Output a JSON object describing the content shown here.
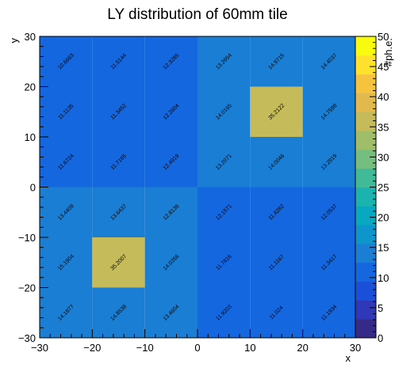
{
  "chart_data": {
    "type": "heatmap",
    "title": "LY distribution of 60mm tile",
    "xlabel": "x",
    "ylabel": "y",
    "zlabel": "#ph.e.",
    "xlim": [
      -30,
      30
    ],
    "ylim": [
      -30,
      30
    ],
    "zlim": [
      0,
      50
    ],
    "x_edges": [
      -30,
      -20,
      -10,
      0,
      10,
      20,
      30
    ],
    "y_edges": [
      -30,
      -20,
      -10,
      0,
      10,
      20,
      30
    ],
    "x_ticks": [
      -30,
      -20,
      -10,
      0,
      10,
      20,
      30
    ],
    "y_ticks": [
      -30,
      -20,
      -10,
      0,
      10,
      20,
      30
    ],
    "z_ticks": [
      0,
      5,
      10,
      15,
      20,
      25,
      30,
      35,
      40,
      45,
      50
    ],
    "rows_top_to_bottom": [
      [
        10.6663,
        11.5144,
        12.3285,
        13.2654,
        14.9715,
        14.4037
      ],
      [
        11.1135,
        11.3452,
        12.2604,
        14.0165,
        35.2122,
        14.7598
      ],
      [
        11.6724,
        11.7165,
        12.4919,
        13.2071,
        14.0046,
        13.2919
      ],
      [
        13.4409,
        13.6437,
        12.8136,
        12.1571,
        11.8282,
        12.0537
      ],
      [
        15.1904,
        35.2007,
        14.0356,
        11.7816,
        11.1167,
        11.3417
      ],
      [
        14.1877,
        14.8538,
        13.4604,
        11.9203,
        11.024,
        11.1934
      ]
    ],
    "palette": [
      "#352a87",
      "#2f38b8",
      "#1a4fd9",
      "#1467df",
      "#1a7fd4",
      "#0e95cb",
      "#09a8c2",
      "#1ab3b0",
      "#41bb97",
      "#74be7f",
      "#a0bd69",
      "#c6bb5a",
      "#e2b94d",
      "#f6c33e",
      "#fde12c",
      "#f9fb0e"
    ]
  }
}
